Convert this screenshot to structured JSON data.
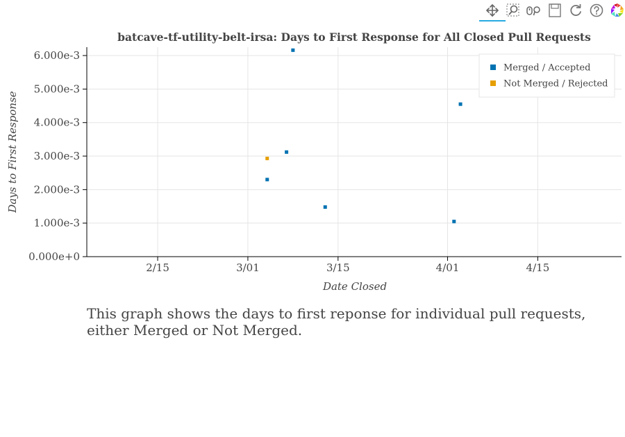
{
  "toolbar": {
    "tools": [
      {
        "name": "pan-tool",
        "icon": "pan-icon",
        "active": true
      },
      {
        "name": "box-zoom-tool",
        "icon": "box-zoom-icon",
        "active": false
      },
      {
        "name": "wheel-zoom-tool",
        "icon": "wheel-zoom-icon",
        "active": false
      },
      {
        "name": "save-tool",
        "icon": "save-icon",
        "active": false
      },
      {
        "name": "reset-tool",
        "icon": "reset-icon",
        "active": false
      },
      {
        "name": "help-tool",
        "icon": "help-icon",
        "active": false
      },
      {
        "name": "bokeh-logo",
        "icon": "bokeh-logo-icon",
        "active": false
      }
    ]
  },
  "chart_data": {
    "type": "scatter",
    "title": "batcave-tf-utility-belt-irsa: Days to First Response for All Closed Pull Requests",
    "xlabel": "Date Closed",
    "ylabel": "Days to First Response",
    "x_type": "date",
    "xlim": [
      "2023-02-04",
      "2023-04-28"
    ],
    "ylim": [
      0,
      0.00625
    ],
    "x_ticks": [
      {
        "value": "2023-02-15",
        "label": "2/15"
      },
      {
        "value": "2023-03-01",
        "label": "3/01"
      },
      {
        "value": "2023-03-15",
        "label": "3/15"
      },
      {
        "value": "2023-04-01",
        "label": "4/01"
      },
      {
        "value": "2023-04-15",
        "label": "4/15"
      }
    ],
    "y_ticks": [
      {
        "value": 0.0,
        "label": "0.000e+0"
      },
      {
        "value": 0.001,
        "label": "1.000e-3"
      },
      {
        "value": 0.002,
        "label": "2.000e-3"
      },
      {
        "value": 0.003,
        "label": "3.000e-3"
      },
      {
        "value": 0.004,
        "label": "4.000e-3"
      },
      {
        "value": 0.005,
        "label": "5.000e-3"
      },
      {
        "value": 0.006,
        "label": "6.000e-3"
      }
    ],
    "grid": true,
    "legend_position": "top-right",
    "series": [
      {
        "name": "Merged / Accepted",
        "color": "#0072b2",
        "points": [
          {
            "x": "2023-03-04",
            "y": 0.0023
          },
          {
            "x": "2023-03-07",
            "y": 0.00312
          },
          {
            "x": "2023-03-08",
            "y": 0.00616
          },
          {
            "x": "2023-03-13",
            "y": 0.00148
          },
          {
            "x": "2023-04-02",
            "y": 0.00105
          },
          {
            "x": "2023-04-03",
            "y": 0.00455
          }
        ]
      },
      {
        "name": "Not Merged / Rejected",
        "color": "#e69f00",
        "points": [
          {
            "x": "2023-03-04",
            "y": 0.00293
          }
        ]
      }
    ]
  },
  "description": "This graph shows the days to first reponse for individual pull requests, either Merged or Not Merged."
}
